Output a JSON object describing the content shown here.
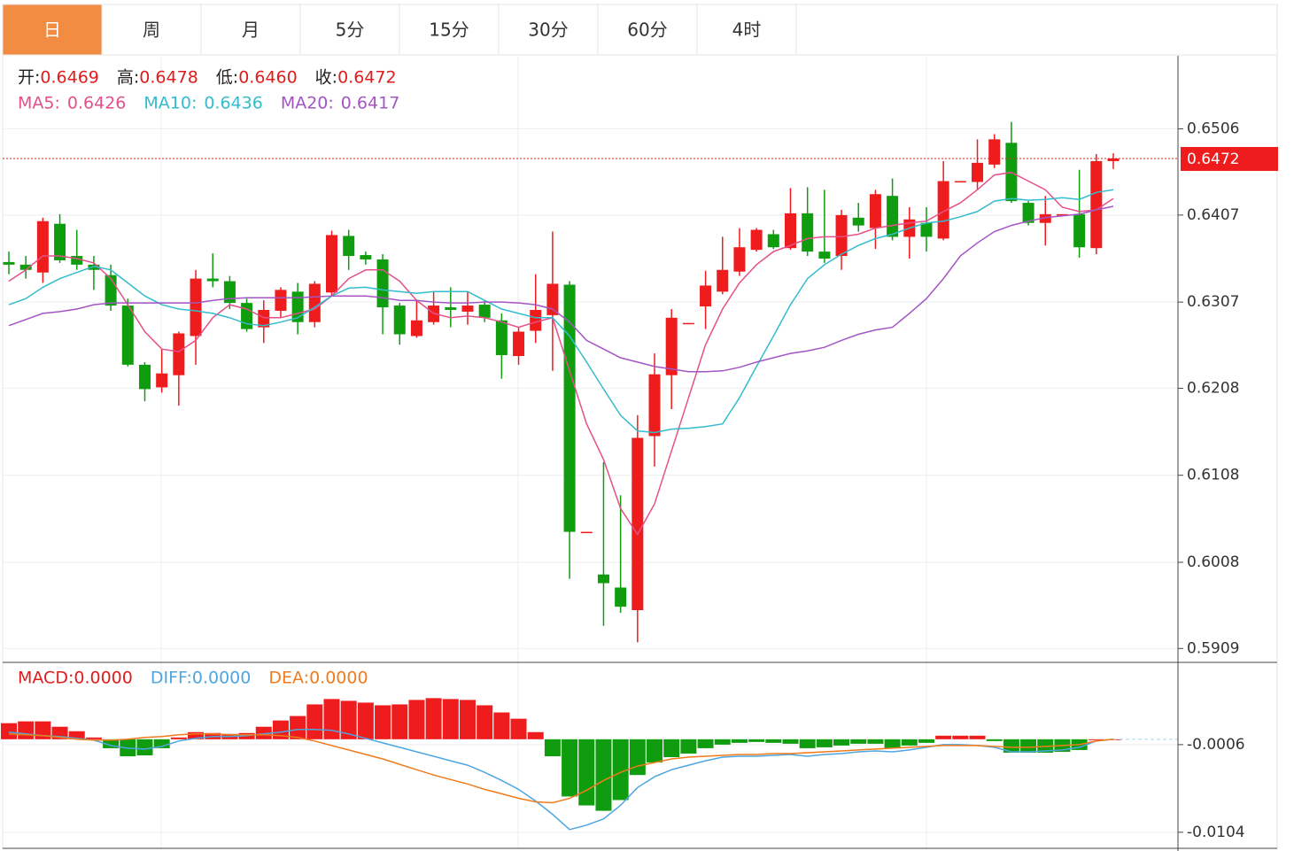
{
  "tabs": [
    {
      "label": "日",
      "active": true
    },
    {
      "label": "周",
      "active": false
    },
    {
      "label": "月",
      "active": false
    },
    {
      "label": "5分",
      "active": false
    },
    {
      "label": "15分",
      "active": false
    },
    {
      "label": "30分",
      "active": false
    },
    {
      "label": "60分",
      "active": false
    },
    {
      "label": "4时",
      "active": false
    }
  ],
  "chart_data": [
    {
      "type": "candlestick",
      "up_color": "#ee1c1c",
      "down_color": "#0f9d0f",
      "ohlc_labels": [
        "开:",
        "高:",
        "低:",
        "收:"
      ],
      "ohlc_value_labels": [
        "0.6469",
        "0.6478",
        "0.6460",
        "0.6472"
      ],
      "open": [
        0.6353,
        0.635,
        0.6341,
        0.6397,
        0.636,
        0.635,
        0.6338,
        0.6303,
        0.6235,
        0.6209,
        0.6223,
        0.6268,
        0.6334,
        0.6331,
        0.6306,
        0.6278,
        0.6297,
        0.6319,
        0.6284,
        0.6318,
        0.6383,
        0.6361,
        0.6356,
        0.6303,
        0.6268,
        0.6284,
        0.6301,
        0.6296,
        0.6304,
        0.6286,
        0.6245,
        0.6274,
        0.6292,
        0.6327,
        0.6042,
        0.5994,
        0.5979,
        0.5953,
        0.6153,
        0.6223,
        0.6282,
        0.6302,
        0.6319,
        0.6342,
        0.6367,
        0.6385,
        0.6369,
        0.6409,
        0.6365,
        0.636,
        0.6404,
        0.6392,
        0.6429,
        0.6382,
        0.6398,
        0.638,
        0.6445,
        0.6445,
        0.6465,
        0.649,
        0.6421,
        0.6398,
        0.6407,
        0.6408,
        0.6369,
        0.6469
      ],
      "high": [
        0.6365,
        0.636,
        0.6404,
        0.6408,
        0.639,
        0.636,
        0.635,
        0.6311,
        0.6238,
        0.6253,
        0.6273,
        0.6344,
        0.6363,
        0.6337,
        0.6311,
        0.6309,
        0.6324,
        0.6329,
        0.6331,
        0.6389,
        0.639,
        0.6365,
        0.6362,
        0.6306,
        0.6309,
        0.6319,
        0.6324,
        0.6319,
        0.6309,
        0.6294,
        0.6278,
        0.6339,
        0.6388,
        0.6331,
        0.6043,
        0.6123,
        0.6085,
        0.6177,
        0.6248,
        0.6299,
        0.6283,
        0.6343,
        0.6382,
        0.6392,
        0.6392,
        0.639,
        0.6438,
        0.6439,
        0.6436,
        0.6413,
        0.6421,
        0.6436,
        0.6449,
        0.6416,
        0.6416,
        0.6469,
        0.6446,
        0.6494,
        0.65,
        0.6514,
        0.6423,
        0.6429,
        0.6408,
        0.6459,
        0.6477,
        0.6478
      ],
      "low": [
        0.6339,
        0.6334,
        0.6329,
        0.6352,
        0.6344,
        0.6321,
        0.6297,
        0.6233,
        0.6193,
        0.6203,
        0.6188,
        0.6235,
        0.6324,
        0.6299,
        0.6273,
        0.626,
        0.6289,
        0.627,
        0.6278,
        0.6314,
        0.6344,
        0.635,
        0.627,
        0.6258,
        0.6266,
        0.6281,
        0.6278,
        0.6281,
        0.6284,
        0.6219,
        0.6235,
        0.626,
        0.6228,
        0.5989,
        0.6042,
        0.5935,
        0.595,
        0.5916,
        0.6118,
        0.6184,
        0.6282,
        0.6276,
        0.6316,
        0.6337,
        0.6365,
        0.6368,
        0.6367,
        0.636,
        0.6352,
        0.6344,
        0.6388,
        0.6368,
        0.6378,
        0.6357,
        0.6365,
        0.6378,
        0.6445,
        0.6436,
        0.6461,
        0.6421,
        0.6395,
        0.6372,
        0.6407,
        0.6358,
        0.6362,
        0.646
      ],
      "close": [
        0.635,
        0.6344,
        0.64,
        0.6355,
        0.635,
        0.6344,
        0.6303,
        0.6235,
        0.6207,
        0.6225,
        0.6271,
        0.6334,
        0.6331,
        0.6306,
        0.6276,
        0.6298,
        0.6321,
        0.6284,
        0.6328,
        0.6384,
        0.636,
        0.6356,
        0.6301,
        0.627,
        0.6286,
        0.6303,
        0.6298,
        0.6303,
        0.6289,
        0.6246,
        0.6273,
        0.6298,
        0.6328,
        0.6043,
        0.6043,
        0.5984,
        0.5957,
        0.6151,
        0.6224,
        0.6289,
        0.6283,
        0.6326,
        0.6344,
        0.637,
        0.639,
        0.637,
        0.6409,
        0.6365,
        0.6357,
        0.6407,
        0.6395,
        0.6431,
        0.6382,
        0.6402,
        0.6382,
        0.6446,
        0.6446,
        0.6467,
        0.6494,
        0.6423,
        0.6398,
        0.6408,
        0.6408,
        0.637,
        0.6469,
        0.6472
      ],
      "series": [
        {
          "name": "MA5:",
          "color": "#e4508a",
          "values": [
            0.6331,
            0.6344,
            0.636,
            0.636,
            0.6357,
            0.6352,
            0.6334,
            0.6304,
            0.6273,
            0.6253,
            0.625,
            0.6263,
            0.6289,
            0.6304,
            0.6299,
            0.6289,
            0.6289,
            0.6294,
            0.6299,
            0.6314,
            0.6334,
            0.6344,
            0.6344,
            0.6331,
            0.6309,
            0.6294,
            0.6289,
            0.6291,
            0.6289,
            0.6284,
            0.6278,
            0.6284,
            0.6289,
            0.6228,
            0.6167,
            0.6126,
            0.607,
            0.604,
            0.6075,
            0.6136,
            0.6197,
            0.6258,
            0.6299,
            0.6329,
            0.635,
            0.6365,
            0.6372,
            0.638,
            0.6382,
            0.6382,
            0.6385,
            0.6392,
            0.6395,
            0.6398,
            0.64,
            0.6411,
            0.6421,
            0.6436,
            0.6453,
            0.6456,
            0.6446,
            0.6436,
            0.6416,
            0.6411,
            0.6413,
            0.6426
          ]
        },
        {
          "name": "MA10:",
          "color": "#33bccd",
          "values": [
            0.6304,
            0.6311,
            0.6324,
            0.6334,
            0.6341,
            0.6348,
            0.6344,
            0.6329,
            0.6314,
            0.6304,
            0.6299,
            0.6297,
            0.6294,
            0.6289,
            0.6282,
            0.628,
            0.6284,
            0.6289,
            0.6301,
            0.6314,
            0.6323,
            0.6324,
            0.6321,
            0.6319,
            0.6317,
            0.6319,
            0.6319,
            0.6319,
            0.6309,
            0.6299,
            0.6294,
            0.6289,
            0.6289,
            0.6268,
            0.6238,
            0.6207,
            0.6177,
            0.6159,
            0.6157,
            0.6161,
            0.6162,
            0.6164,
            0.6167,
            0.6197,
            0.6233,
            0.6268,
            0.6304,
            0.6334,
            0.635,
            0.6362,
            0.6372,
            0.638,
            0.6385,
            0.6392,
            0.6398,
            0.64,
            0.6405,
            0.6411,
            0.6423,
            0.6426,
            0.6424,
            0.6425,
            0.6427,
            0.6425,
            0.6433,
            0.6436
          ]
        },
        {
          "name": "MA20:",
          "color": "#a455c4",
          "values": [
            0.628,
            0.6287,
            0.6294,
            0.6296,
            0.6299,
            0.6304,
            0.6306,
            0.6306,
            0.6306,
            0.6306,
            0.6306,
            0.6306,
            0.6309,
            0.6311,
            0.6312,
            0.6312,
            0.6312,
            0.6312,
            0.6313,
            0.6314,
            0.6314,
            0.6314,
            0.6312,
            0.6309,
            0.6309,
            0.6307,
            0.6306,
            0.6306,
            0.6307,
            0.6307,
            0.6306,
            0.6304,
            0.6299,
            0.6284,
            0.6263,
            0.6253,
            0.6243,
            0.6238,
            0.6233,
            0.623,
            0.6227,
            0.6227,
            0.6228,
            0.6232,
            0.6238,
            0.6243,
            0.6248,
            0.6251,
            0.6255,
            0.6263,
            0.627,
            0.6275,
            0.6278,
            0.6294,
            0.6311,
            0.6334,
            0.636,
            0.6375,
            0.6388,
            0.6395,
            0.64,
            0.6404,
            0.6406,
            0.6408,
            0.6413,
            0.6417
          ]
        }
      ],
      "ylim": [
        0.5893,
        0.659
      ],
      "yticks": [
        0.6506,
        0.6407,
        0.6307,
        0.6208,
        0.6108,
        0.6008,
        0.5909
      ],
      "grid": true
    },
    {
      "type": "macd",
      "series": [
        {
          "name": "MACD:",
          "type": "bar",
          "color": "#e01c1c",
          "up_color": "#ee1c1c",
          "down_color": "#0f9d0f",
          "latest_label": "0.0000",
          "values": [
            0.0018,
            0.002,
            0.002,
            0.0014,
            0.0009,
            0.0002,
            -0.001,
            -0.0019,
            -0.0018,
            -0.001,
            0.0002,
            0.0008,
            0.0007,
            0.0006,
            0.0007,
            0.0014,
            0.0021,
            0.0026,
            0.0039,
            0.0045,
            0.0043,
            0.0041,
            0.0038,
            0.0039,
            0.0044,
            0.0046,
            0.0045,
            0.0044,
            0.0038,
            0.003,
            0.0023,
            0.0008,
            -0.0019,
            -0.0064,
            -0.0074,
            -0.008,
            -0.0068,
            -0.004,
            -0.0026,
            -0.002,
            -0.0016,
            -0.001,
            -0.0006,
            -0.0004,
            -0.0003,
            -0.0004,
            -0.0005,
            -0.001,
            -0.0009,
            -0.0007,
            -0.0005,
            -0.0005,
            -0.001,
            -0.0007,
            -0.0004,
            0.0004,
            0.0004,
            0.0004,
            -0.0002,
            -0.0015,
            -0.0015,
            -0.0015,
            -0.0014,
            -0.0012,
            0,
            0
          ]
        },
        {
          "name": "DIFF:",
          "type": "line",
          "color": "#4ea6e0",
          "latest_label": "0.0000",
          "values": [
            0.0008,
            0.0006,
            0.0004,
            0.0003,
            0.0001,
            -0.0001,
            -0.0007,
            -0.001,
            -0.0011,
            -0.0008,
            -0.0002,
            0.0001,
            0.0003,
            0.0003,
            0.0004,
            0.0006,
            0.0008,
            0.0011,
            0.0011,
            0.001,
            0.0006,
            0.0001,
            -0.0004,
            -0.0009,
            -0.0014,
            -0.0019,
            -0.0024,
            -0.0029,
            -0.0037,
            -0.0046,
            -0.0056,
            -0.0069,
            -0.0084,
            -0.0101,
            -0.0096,
            -0.0089,
            -0.0074,
            -0.0054,
            -0.0042,
            -0.0034,
            -0.0029,
            -0.0024,
            -0.002,
            -0.0019,
            -0.0019,
            -0.0018,
            -0.0017,
            -0.0019,
            -0.0017,
            -0.0016,
            -0.0014,
            -0.0013,
            -0.0014,
            -0.0012,
            -0.0009,
            -0.0006,
            -0.0006,
            -0.0007,
            -0.0009,
            -0.0014,
            -0.0014,
            -0.0013,
            -0.0012,
            -0.0009,
            -0.0002,
            0
          ]
        },
        {
          "name": "DEA:",
          "type": "line",
          "color": "#f07b1c",
          "latest_label": "0.0000",
          "values": [
            0.0006,
            0.0005,
            0.0004,
            0.0002,
            0,
            -0.0001,
            -0.0001,
            0,
            0.0002,
            0.0003,
            0.0005,
            0.0006,
            0.0006,
            0.0005,
            0.0005,
            0.0005,
            0.0004,
            0.0002,
            -0.0002,
            -0.0007,
            -0.0012,
            -0.0017,
            -0.0022,
            -0.0028,
            -0.0034,
            -0.004,
            -0.0045,
            -0.005,
            -0.0056,
            -0.0061,
            -0.0066,
            -0.007,
            -0.0071,
            -0.0066,
            -0.0057,
            -0.0046,
            -0.0037,
            -0.003,
            -0.0026,
            -0.0022,
            -0.002,
            -0.0019,
            -0.0018,
            -0.0017,
            -0.0017,
            -0.0016,
            -0.0016,
            -0.0015,
            -0.0014,
            -0.0013,
            -0.0012,
            -0.0011,
            -0.001,
            -0.0009,
            -0.0008,
            -0.0007,
            -0.0007,
            -0.0007,
            -0.0008,
            -0.0009,
            -0.0009,
            -0.0008,
            -0.0007,
            -0.0006,
            -0.0002,
            0
          ]
        }
      ],
      "ylim": [
        -0.0122,
        0.0086
      ],
      "yticks": [
        -0.0006,
        -0.0104
      ],
      "grid": true
    }
  ]
}
